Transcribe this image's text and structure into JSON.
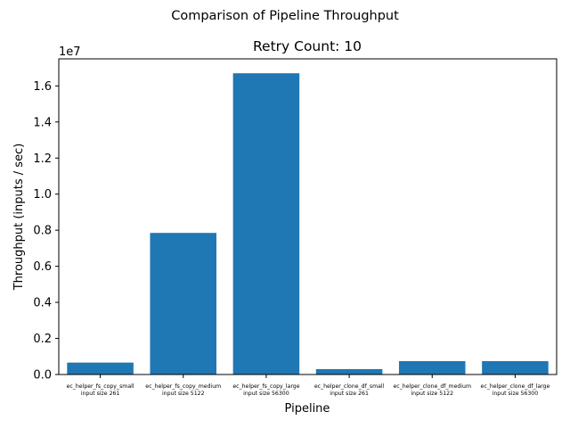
{
  "chart_data": {
    "type": "bar",
    "suptitle": "Comparison of Pipeline Throughput",
    "title": "Retry Count: 10",
    "xlabel": "Pipeline",
    "ylabel": "Throughput (inputs / sec)",
    "y_offset_label": "1e7",
    "categories": [
      {
        "name": "ec_helper_fs_copy_small",
        "size": "input size 261"
      },
      {
        "name": "ec_helper_fs_copy_medium",
        "size": "input size 5122"
      },
      {
        "name": "ec_helper_fs_copy_large",
        "size": "input size 56300"
      },
      {
        "name": "ec_helper_clone_df_small",
        "size": "input size 261"
      },
      {
        "name": "ec_helper_clone_df_medium",
        "size": "input size 5122"
      },
      {
        "name": "ec_helper_clone_df_large",
        "size": "input size 56300"
      }
    ],
    "values": [
      660000,
      7850000,
      16700000,
      300000,
      740000,
      740000
    ],
    "ylim": [
      0,
      17500000
    ],
    "yticks": [
      0,
      2000000,
      4000000,
      6000000,
      8000000,
      10000000,
      12000000,
      14000000,
      16000000
    ],
    "ytick_labels": [
      "0.0",
      "0.2",
      "0.4",
      "0.6",
      "0.8",
      "1.0",
      "1.2",
      "1.4",
      "1.6"
    ],
    "bar_color": "#1f77b4",
    "grid": false,
    "legend": false
  }
}
